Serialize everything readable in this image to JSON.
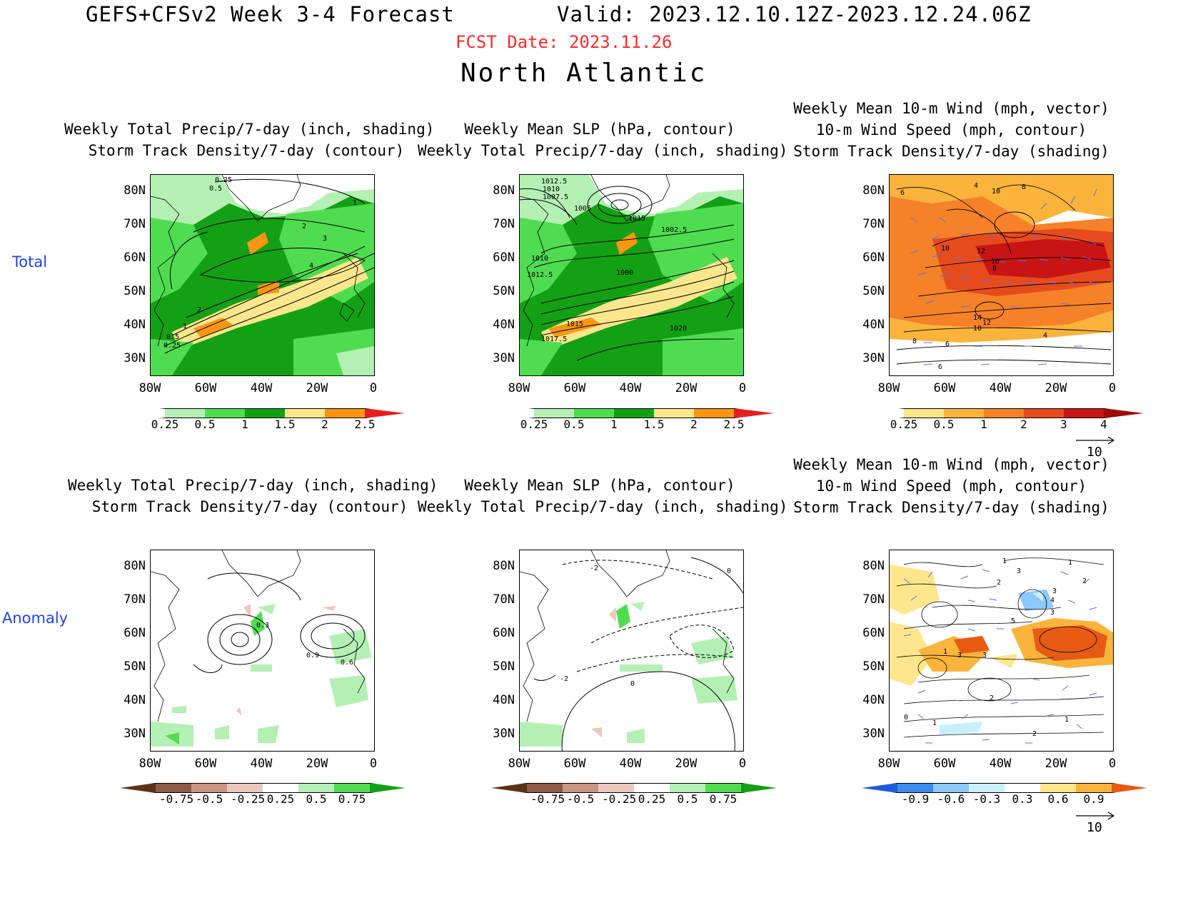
{
  "header": {
    "title": "GEFS+CFSv2 Week 3-4 Forecast",
    "valid": "Valid: 2023.12.10.12Z-2023.12.24.06Z",
    "fcst_date": "FCST Date: 2023.11.26",
    "region": "North Atlantic"
  },
  "row_labels": {
    "total": "Total",
    "anomaly": "Anomaly"
  },
  "axes": {
    "lat_labels": [
      "80N",
      "70N",
      "60N",
      "50N",
      "40N",
      "30N"
    ],
    "lon_labels": [
      "80W",
      "60W",
      "40W",
      "20W",
      "0"
    ]
  },
  "panels": {
    "p1": {
      "line1": "Weekly Total Precip/7-day (inch, shading)",
      "line2": "Storm Track Density/7-day (contour)"
    },
    "p2": {
      "line1": "Weekly Mean SLP (hPa, contour)",
      "line2": "Weekly Total Precip/7-day (inch, shading)"
    },
    "p3": {
      "line1": "Weekly Mean 10-m Wind (mph, vector)",
      "line2": "10-m Wind Speed (mph, contour)",
      "line3": "Storm Track Density/7-day (shading)"
    },
    "p4": {
      "line1": "Weekly Total Precip/7-day (inch, shading)",
      "line2": "Storm Track Density/7-day (contour)"
    },
    "p5": {
      "line1": "Weekly Mean SLP (hPa, contour)",
      "line2": "Weekly Total Precip/7-day (inch, shading)"
    },
    "p6": {
      "line1": "Weekly Mean 10-m Wind (mph, vector)",
      "line2": "10-m Wind Speed (mph, contour)",
      "line3": "Storm Track Density/7-day (shading)"
    }
  },
  "contour_labels": {
    "p1": [
      "0.25",
      "0.5",
      "1",
      "2",
      "3",
      "4",
      "2",
      "1",
      "0.5",
      "0.25"
    ],
    "p2": [
      "1012.5",
      "1010",
      "1007.5",
      "1005",
      "1015",
      "1002.5",
      "1010",
      "1012.5",
      "1000",
      "1015",
      "1017.5",
      "1020"
    ],
    "p3": [
      "6",
      "4",
      "10",
      "8",
      "10",
      "12",
      "10",
      "8",
      "14",
      "12",
      "10",
      "8",
      "6",
      "4",
      "6"
    ],
    "p4": [
      "0.3",
      "0.9",
      "0.6"
    ],
    "p5": [
      "-2",
      "0",
      "-2",
      "0"
    ],
    "p6": [
      "1",
      "2",
      "3",
      "1",
      "2",
      "3",
      "4",
      "5",
      "3",
      "1",
      "3",
      "3",
      "2",
      "1",
      "0",
      "1",
      "2"
    ]
  },
  "colorbars": {
    "precip_total": {
      "labels": [
        "0.25",
        "0.5",
        "1",
        "1.5",
        "2",
        "2.5"
      ],
      "colors": [
        "#ffffff",
        "#b4f0b4",
        "#50dc50",
        "#14a014",
        "#fae68c",
        "#fa9614",
        "#e61e1e"
      ]
    },
    "track_total": {
      "labels": [
        "0.25",
        "0.5",
        "1",
        "2",
        "3",
        "4"
      ],
      "colors": [
        "#ffffff",
        "#ffe68c",
        "#fab43c",
        "#f58228",
        "#e64b1e",
        "#c81414",
        "#a00a0a"
      ]
    },
    "precip_anom": {
      "labels": [
        "-0.75",
        "-0.5",
        "-0.25",
        "0.25",
        "0.5",
        "0.75"
      ],
      "colors": [
        "#5a3214",
        "#8c5a46",
        "#c89682",
        "#ebc8be",
        "#ffffff",
        "#b4f0b4",
        "#50dc50",
        "#14a014"
      ]
    },
    "track_anom": {
      "labels": [
        "-0.9",
        "-0.6",
        "-0.3",
        "0.3",
        "0.6",
        "0.9"
      ],
      "colors": [
        "#1e5adc",
        "#3c8cf0",
        "#8cc8fa",
        "#c8f0fa",
        "#ffffff",
        "#ffe68c",
        "#fab43c",
        "#e65a14"
      ]
    },
    "vector_ref": "10"
  },
  "colors": {
    "title_red": "#ff2b2b",
    "row_label_blue": "#1f44e0",
    "vector_blue": "#5a6ef0"
  }
}
